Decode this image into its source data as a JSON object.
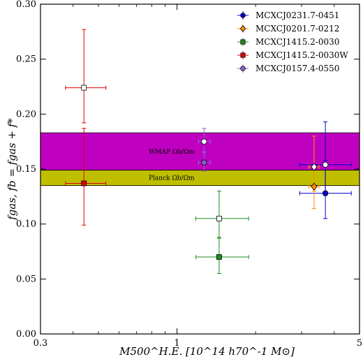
{
  "chart_data": {
    "type": "scatter",
    "x_scale": "log",
    "xlim": [
      0.3,
      5
    ],
    "ylim": [
      0.0,
      0.3
    ],
    "xticks": [
      0.3,
      1,
      5
    ],
    "xtick_labels": [
      "0.3",
      "1",
      "5"
    ],
    "yticks": [
      0.0,
      0.05,
      0.1,
      0.15,
      0.2,
      0.25,
      0.3
    ],
    "ytick_labels": [
      "0.00",
      "0.05",
      "0.10",
      "0.15",
      "0.20",
      "0.25",
      "0.30"
    ],
    "xlabel": "M500^H.E. [10^14 h70^-1 M⊙]",
    "ylabel": "fgas, fb = fgas + f*",
    "legend_position": "top-right",
    "bands": [
      {
        "name": "WMAP Ωb/Ωm",
        "y_range": [
          0.149,
          0.183
        ],
        "color": "#c000c0"
      },
      {
        "name": "Planck Ωb/Ωm",
        "y_range": [
          0.135,
          0.149
        ],
        "color": "#bfbf00"
      }
    ],
    "series": [
      {
        "name": "MCXCJ0231.7-0451",
        "color": "#0000cc",
        "marker": "circle",
        "filled": {
          "x": 3.7,
          "y": 0.128,
          "xerr": [
            0.75,
            0.95
          ],
          "yerr": [
            0.023,
            0.03
          ]
        },
        "open": {
          "x": 3.7,
          "y": 0.154,
          "xerr": [
            0.75,
            0.95
          ],
          "yerr": [
            0.028,
            0.039
          ]
        }
      },
      {
        "name": "MCXCJ0201.7-0212",
        "color": "#ff8c00",
        "marker": "diamond",
        "filled": {
          "x": 3.35,
          "y": 0.134,
          "xerr": [
            0.15,
            0.15
          ],
          "yerr": [
            0.02,
            0.018
          ]
        },
        "open": {
          "x": 3.35,
          "y": 0.152,
          "xerr": [
            0.15,
            0.15
          ],
          "yerr": [
            0.022,
            0.028
          ]
        }
      },
      {
        "name": "MCXCJ1415.2-0030",
        "color": "#228b22",
        "marker": "square",
        "filled": {
          "x": 1.45,
          "y": 0.07,
          "xerr": [
            0.27,
            0.43
          ],
          "yerr": [
            0.015,
            0.018
          ]
        },
        "open": {
          "x": 1.45,
          "y": 0.105,
          "xerr": [
            0.27,
            0.43
          ],
          "yerr": [
            0.018,
            0.025
          ]
        }
      },
      {
        "name": "MCXCJ1415.2-0030W",
        "color": "#dd0000",
        "marker": "square",
        "filled": {
          "x": 0.44,
          "y": 0.137,
          "xerr": [
            0.066,
            0.094
          ],
          "yerr": [
            0.038,
            0.05
          ]
        },
        "open": {
          "x": 0.44,
          "y": 0.224,
          "xerr": [
            0.066,
            0.094
          ],
          "yerr": [
            0.032,
            0.053
          ]
        }
      },
      {
        "name": "MCXCJ0157.4-0550",
        "color": "#8866cc",
        "marker": "circle",
        "filled": {
          "x": 1.27,
          "y": 0.156,
          "xerr": [
            0.06,
            0.07
          ],
          "yerr": [
            0.008,
            0.01
          ]
        },
        "open": {
          "x": 1.27,
          "y": 0.175,
          "xerr": [
            0.06,
            0.07
          ],
          "yerr": [
            0.01,
            0.012
          ]
        }
      }
    ]
  }
}
